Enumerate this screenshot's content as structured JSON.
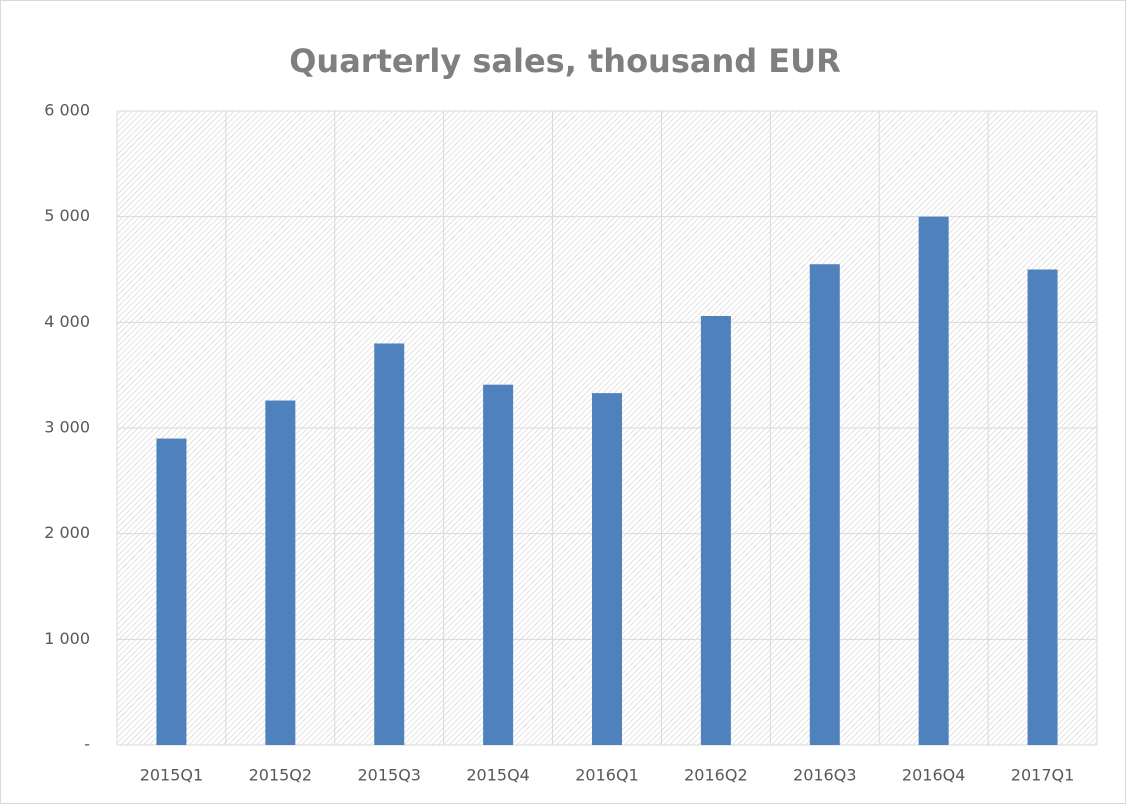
{
  "chart_data": {
    "type": "bar",
    "title": "Quarterly sales, thousand EUR",
    "categories": [
      "2015Q1",
      "2015Q2",
      "2015Q3",
      "2015Q4",
      "2016Q1",
      "2016Q2",
      "2016Q3",
      "2016Q4",
      "2017Q1"
    ],
    "values": [
      2900,
      3260,
      3800,
      3410,
      3330,
      4060,
      4550,
      5000,
      4500
    ],
    "color": "#4f81bd",
    "ylim": [
      0,
      6000
    ],
    "yticks": [
      {
        "value": 0,
        "label": "-"
      },
      {
        "value": 1000,
        "label": "1 000"
      },
      {
        "value": 2000,
        "label": "2 000"
      },
      {
        "value": 3000,
        "label": "3 000"
      },
      {
        "value": 4000,
        "label": "4 000"
      },
      {
        "value": 5000,
        "label": "5 000"
      },
      {
        "value": 6000,
        "label": "6 000"
      }
    ],
    "grid": true
  }
}
